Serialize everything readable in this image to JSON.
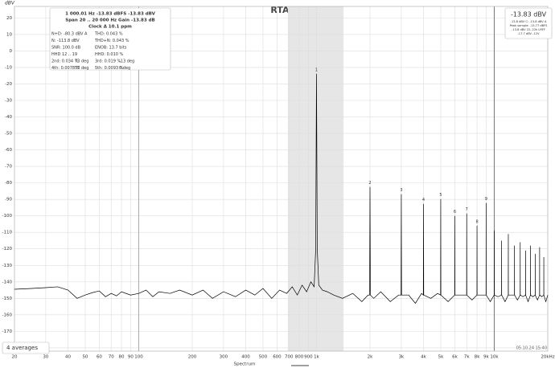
{
  "chart_data": {
    "type": "line",
    "title": "RTA",
    "y_label": "dBV",
    "x_scale": "log",
    "grid": true,
    "xlim": [
      20,
      20000
    ],
    "ylim": [
      -182,
      27
    ],
    "xticks": [
      20,
      30,
      40,
      50,
      60,
      70,
      80,
      90,
      100,
      200,
      300,
      400,
      500,
      600,
      700,
      800,
      900,
      {
        "value": 1000,
        "label": "1k"
      },
      {
        "value": 2000,
        "label": "2k"
      },
      {
        "value": 3000,
        "label": "3k"
      },
      {
        "value": 4000,
        "label": "4k"
      },
      {
        "value": 5000,
        "label": "5k"
      },
      {
        "value": 6000,
        "label": "6k"
      },
      {
        "value": 7000,
        "label": "7k"
      },
      {
        "value": 8000,
        "label": "8k"
      },
      {
        "value": 9000,
        "label": "9k"
      },
      {
        "value": 10000,
        "label": "10k"
      },
      {
        "value": 20000,
        "label": "20kHz"
      }
    ],
    "yticks": [
      -180,
      -170,
      -160,
      -150,
      -140,
      -130,
      -120,
      -110,
      -100,
      -90,
      -80,
      -70,
      -60,
      -50,
      -40,
      -30,
      -20,
      -10,
      0,
      10,
      20
    ],
    "shade": [
      690,
      1420
    ],
    "vlines": [
      100,
      10000
    ],
    "series": [
      {
        "name": "Spectrum",
        "color": "#000000",
        "x": [
          20,
          25,
          30,
          35,
          40,
          45,
          50,
          55,
          60,
          65,
          70,
          75,
          80,
          90,
          100,
          110,
          120,
          130,
          150,
          170,
          200,
          230,
          260,
          300,
          350,
          400,
          450,
          500,
          560,
          620,
          680,
          730,
          780,
          830,
          880,
          930,
          970,
          990,
          1000,
          1010,
          1030,
          1080,
          1150,
          1250,
          1400,
          1600,
          1800,
          1950,
          1990,
          2000,
          2010,
          2100,
          2300,
          2600,
          2900,
          2990,
          3000,
          3010,
          3300,
          3600,
          3900,
          3990,
          4000,
          4010,
          4400,
          4800,
          4990,
          5000,
          5010,
          5500,
          5990,
          6000,
          6010,
          6500,
          6990,
          7000,
          7010,
          7500,
          7990,
          8000,
          8010,
          8500,
          8990,
          9000,
          9010,
          9500,
          9990,
          10000,
          10010,
          10500,
          10990,
          11000,
          11010,
          11500,
          11990,
          12000,
          12010,
          12500,
          12990,
          13000,
          13010,
          13500,
          13990,
          14000,
          14010,
          14500,
          14990,
          15000,
          15010,
          15500,
          15990,
          16000,
          16010,
          16500,
          16990,
          17000,
          17010,
          17500,
          17990,
          18000,
          18010,
          18500,
          18990,
          19000,
          19010,
          19500,
          20000
        ],
        "values": [
          -144.5,
          -144,
          -143.5,
          -143,
          -145,
          -150,
          -148,
          -146.5,
          -145.5,
          -149,
          -147,
          -148.5,
          -146,
          -148,
          -147,
          -145,
          -149,
          -146,
          -147,
          -145,
          -148,
          -145,
          -150,
          -146,
          -149,
          -145,
          -148,
          -144,
          -150,
          -145,
          -147,
          -143,
          -148,
          -142,
          -146,
          -140,
          -143,
          -120,
          -13.83,
          -120,
          -142,
          -145,
          -146,
          -148,
          -150,
          -147,
          -152,
          -148,
          -148,
          -82.4,
          -148,
          -150,
          -146,
          -152,
          -148,
          -148,
          -86.8,
          -148,
          -148,
          -153,
          -147,
          -148,
          -92.7,
          -148,
          -150,
          -147,
          -148,
          -89.8,
          -148,
          -152,
          -148,
          -100,
          -148,
          -148,
          -148,
          -98.5,
          -148,
          -151,
          -148,
          -105.9,
          -148,
          -148,
          -148,
          -92.2,
          -148,
          -152,
          -148,
          -109,
          -148,
          -149,
          -148,
          -115,
          -148,
          -152,
          -148,
          -111,
          -148,
          -148,
          -148,
          -118,
          -148,
          -151,
          -148,
          -116,
          -148,
          -149,
          -148,
          -121,
          -148,
          -152,
          -148,
          -118,
          -148,
          -149,
          -148,
          -123,
          -148,
          -151,
          -148,
          -119,
          -148,
          -149,
          -148,
          -125,
          -148,
          -152,
          -148
        ]
      }
    ],
    "peaks": {
      "labels": [
        "1",
        "2",
        "3",
        "4",
        "5",
        "6",
        "7",
        "8",
        "9"
      ],
      "x": [
        1000,
        2000,
        3000,
        4000,
        5000,
        6000,
        7000,
        8000,
        9000
      ],
      "values": [
        -13.83,
        -82.4,
        -86.8,
        -92.7,
        -89.8,
        -100,
        -98.5,
        -105.9,
        -92.2
      ]
    },
    "info_header": [
      "1 000.01 Hz  -13.83 dBFS  -13.83 dBV",
      "Span 20 .. 20 000 Hz   Gain -13.83 dB",
      "Clock Δ 10.1 ppm"
    ],
    "info_rows": [
      [
        "N+D: -80.3 dBV A",
        "",
        "THD: 0.043 %",
        ""
      ],
      [
        "N: -113.8 dBV",
        "",
        "THD+N: 0.043 %",
        ""
      ],
      [
        "SNR: 100.0 dB",
        "",
        "ENOB: 13.7 bits",
        ""
      ],
      [
        "HHD 12 .. 19",
        "",
        "HHD: 0.010 %",
        ""
      ],
      [
        "2nd: 0.034 %",
        "73 deg",
        "3rd: 0.019 %",
        "-13 deg"
      ],
      [
        "4th: 0.0078 %",
        "57 deg",
        "5th: 0.0093 %",
        "0 deg"
      ]
    ],
    "readout": "-13.83 dBV",
    "readout_details": [
      "-13.8 dBV C: -13.8 dBV A",
      "Peak sample: -13.77 dBFS",
      "-13.8 dBV 22..22k LRFF",
      "-17.7 dBV -12V"
    ],
    "averages": "4 averages",
    "timestamp": "05.10.24 15:40"
  }
}
